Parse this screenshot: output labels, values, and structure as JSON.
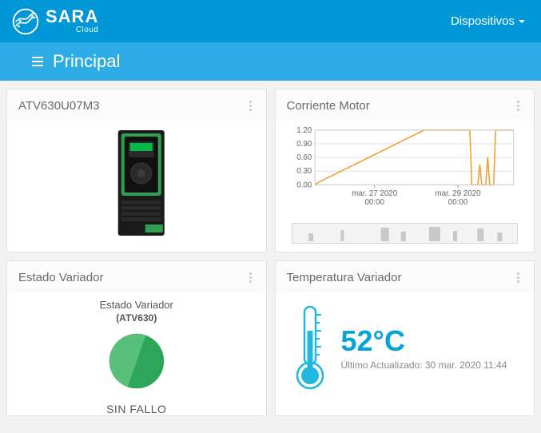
{
  "brand": {
    "main": "SARA",
    "sub": "Cloud"
  },
  "nav": {
    "dispositivos": "Dispositivos"
  },
  "page": {
    "title": "Principal"
  },
  "panels": {
    "device": {
      "title": "ATV630U07M3"
    },
    "current": {
      "title": "Corriente Motor",
      "chart": {
        "type": "line",
        "ylim": [
          0.0,
          1.2
        ],
        "yticks": [
          0.0,
          0.3,
          0.6,
          0.9,
          1.2
        ],
        "xticks": [
          "mar. 27 2020 00:00",
          "mar. 29 2020 00:00"
        ],
        "line_color": "#f0a030",
        "grid_color": "#e0e0e0",
        "background_color": "#ffffff",
        "points": [
          [
            0.0,
            0.0
          ],
          [
            0.02,
            0.06
          ],
          [
            0.55,
            1.2
          ],
          [
            0.78,
            1.2
          ],
          [
            0.79,
            0.0
          ],
          [
            0.82,
            0.0
          ],
          [
            0.83,
            0.45
          ],
          [
            0.84,
            0.0
          ],
          [
            0.86,
            0.0
          ],
          [
            0.87,
            0.6
          ],
          [
            0.88,
            0.0
          ],
          [
            0.9,
            0.0
          ],
          [
            0.91,
            1.2
          ],
          [
            1.0,
            1.2
          ]
        ]
      }
    },
    "estado": {
      "title": "Estado Variador",
      "subtitle": "Estado Variador",
      "device": "(ATV630)",
      "status": "SIN FALLO",
      "colors": {
        "left": "#58c078",
        "right": "#2ea65a"
      }
    },
    "temperatura": {
      "title": "Temperatura Variador",
      "value": "52°C",
      "updated": "Último Actualizado: 30 mar. 2020 11:44",
      "thermo_color": "#20b7e0"
    }
  }
}
